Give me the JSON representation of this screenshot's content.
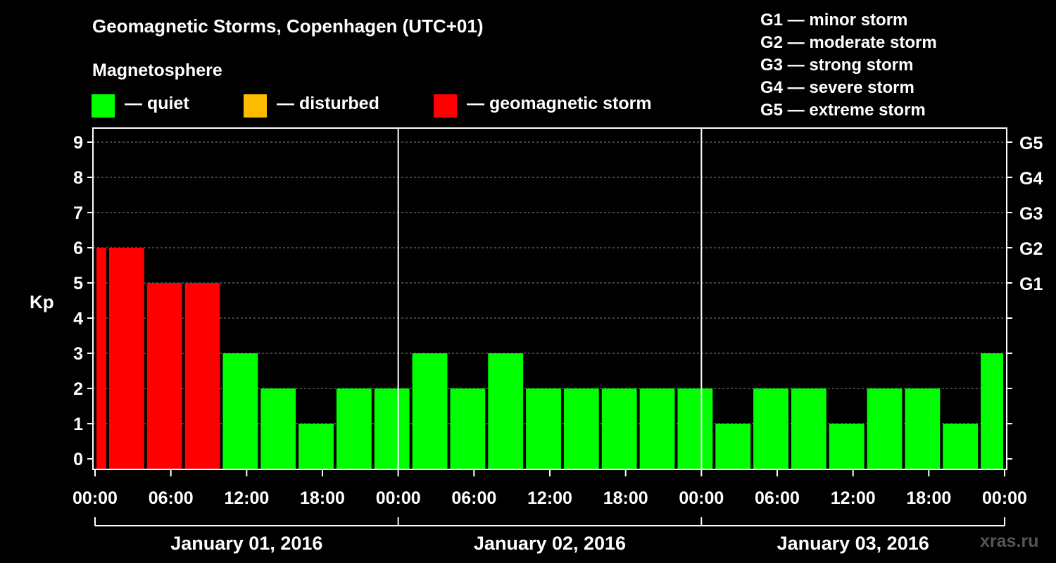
{
  "title": "Geomagnetic Storms, Copenhagen (UTC+01)",
  "legend": {
    "heading": "Magnetosphere",
    "items": [
      {
        "label": "— quiet",
        "color": "#00ff00"
      },
      {
        "label": "— disturbed",
        "color": "#ffbb00"
      },
      {
        "label": "— geomagnetic storm",
        "color": "#ff0000"
      }
    ]
  },
  "storm_scale": [
    "G1 — minor storm",
    "G2 — moderate storm",
    "G3 — strong storm",
    "G4 — severe storm",
    "G5 — extreme storm"
  ],
  "watermark": "xras.ru",
  "chart_data": {
    "type": "bar",
    "title": "Geomagnetic Storms, Copenhagen (UTC+01)",
    "ylabel": "Kp",
    "ylim": [
      0,
      9
    ],
    "yticks": [
      0,
      1,
      2,
      3,
      4,
      5,
      6,
      7,
      8,
      9
    ],
    "right_axis_labels": [
      {
        "kp": 5,
        "label": "G1"
      },
      {
        "kp": 6,
        "label": "G2"
      },
      {
        "kp": 7,
        "label": "G3"
      },
      {
        "kp": 8,
        "label": "G4"
      },
      {
        "kp": 9,
        "label": "G5"
      }
    ],
    "x_hours_range": [
      0,
      72
    ],
    "x_ticks": [
      "00:00",
      "06:00",
      "12:00",
      "18:00",
      "00:00",
      "06:00",
      "12:00",
      "18:00",
      "00:00",
      "06:00",
      "12:00",
      "18:00",
      "00:00"
    ],
    "days": [
      "January 01, 2016",
      "January 02, 2016",
      "January 03, 2016"
    ],
    "grid": true,
    "bars": [
      {
        "start_h": 0,
        "end_h": 1,
        "kp": 6,
        "status": "storm"
      },
      {
        "start_h": 1,
        "end_h": 4,
        "kp": 6,
        "status": "storm"
      },
      {
        "start_h": 4,
        "end_h": 7,
        "kp": 5,
        "status": "storm"
      },
      {
        "start_h": 7,
        "end_h": 10,
        "kp": 5,
        "status": "storm"
      },
      {
        "start_h": 10,
        "end_h": 13,
        "kp": 3,
        "status": "quiet"
      },
      {
        "start_h": 13,
        "end_h": 16,
        "kp": 2,
        "status": "quiet"
      },
      {
        "start_h": 16,
        "end_h": 19,
        "kp": 1,
        "status": "quiet"
      },
      {
        "start_h": 19,
        "end_h": 22,
        "kp": 2,
        "status": "quiet"
      },
      {
        "start_h": 22,
        "end_h": 25,
        "kp": 2,
        "status": "quiet"
      },
      {
        "start_h": 25,
        "end_h": 28,
        "kp": 3,
        "status": "quiet"
      },
      {
        "start_h": 28,
        "end_h": 31,
        "kp": 2,
        "status": "quiet"
      },
      {
        "start_h": 31,
        "end_h": 34,
        "kp": 3,
        "status": "quiet"
      },
      {
        "start_h": 34,
        "end_h": 37,
        "kp": 2,
        "status": "quiet"
      },
      {
        "start_h": 37,
        "end_h": 40,
        "kp": 2,
        "status": "quiet"
      },
      {
        "start_h": 40,
        "end_h": 43,
        "kp": 2,
        "status": "quiet"
      },
      {
        "start_h": 43,
        "end_h": 46,
        "kp": 2,
        "status": "quiet"
      },
      {
        "start_h": 46,
        "end_h": 49,
        "kp": 2,
        "status": "quiet"
      },
      {
        "start_h": 49,
        "end_h": 52,
        "kp": 1,
        "status": "quiet"
      },
      {
        "start_h": 52,
        "end_h": 55,
        "kp": 2,
        "status": "quiet"
      },
      {
        "start_h": 55,
        "end_h": 58,
        "kp": 2,
        "status": "quiet"
      },
      {
        "start_h": 58,
        "end_h": 61,
        "kp": 1,
        "status": "quiet"
      },
      {
        "start_h": 61,
        "end_h": 64,
        "kp": 2,
        "status": "quiet"
      },
      {
        "start_h": 64,
        "end_h": 67,
        "kp": 2,
        "status": "quiet"
      },
      {
        "start_h": 67,
        "end_h": 70,
        "kp": 1,
        "status": "quiet"
      },
      {
        "start_h": 70,
        "end_h": 72,
        "kp": 3,
        "status": "quiet"
      }
    ]
  }
}
